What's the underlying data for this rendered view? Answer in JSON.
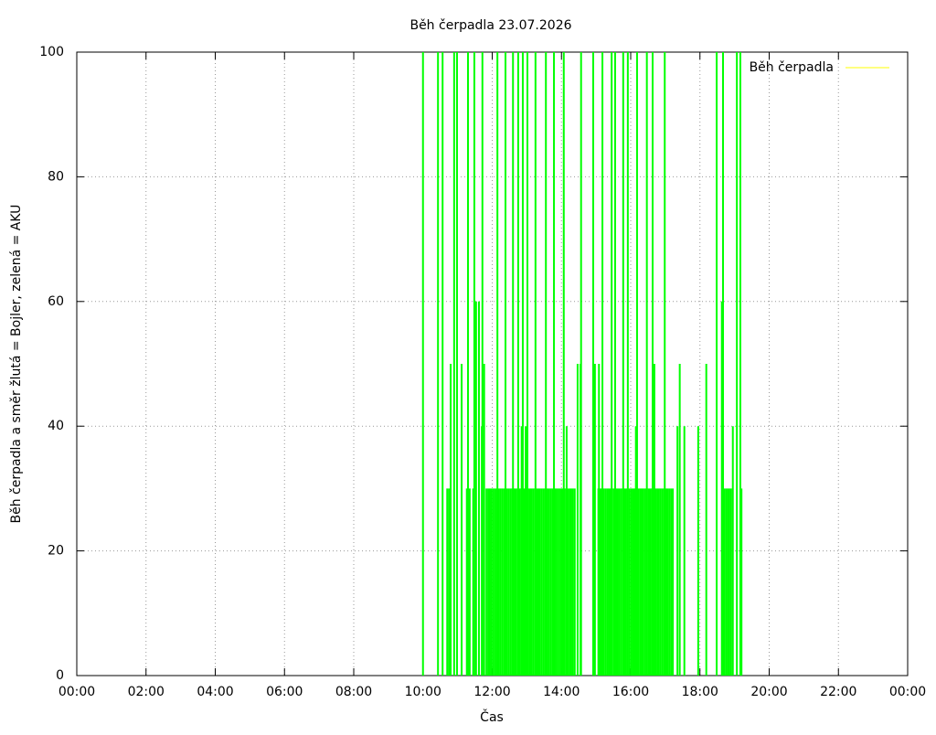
{
  "chart_data": {
    "type": "impulse",
    "title": "Běh čerpadla 23.07.2026",
    "x_label": "Čas",
    "y_label": "Běh čerpadla a směr žlutá = Bojler, zelená = AKU",
    "xlim": [
      0,
      1440
    ],
    "ylim": [
      0,
      100
    ],
    "xticks": [
      {
        "value": 0,
        "label": "00:00"
      },
      {
        "value": 120,
        "label": "02:00"
      },
      {
        "value": 240,
        "label": "04:00"
      },
      {
        "value": 360,
        "label": "06:00"
      },
      {
        "value": 480,
        "label": "08:00"
      },
      {
        "value": 600,
        "label": "10:00"
      },
      {
        "value": 720,
        "label": "12:00"
      },
      {
        "value": 840,
        "label": "14:00"
      },
      {
        "value": 960,
        "label": "16:00"
      },
      {
        "value": 1080,
        "label": "18:00"
      },
      {
        "value": 1200,
        "label": "20:00"
      },
      {
        "value": 1320,
        "label": "22:00"
      },
      {
        "value": 1440,
        "label": "00:00"
      }
    ],
    "yticks": [
      0,
      20,
      40,
      60,
      80,
      100
    ],
    "grid": true,
    "legend": "top-right",
    "series": [
      {
        "color": "#00ff00",
        "x": [
          600,
          626,
          634,
          654,
          659,
          678,
          689,
          703,
          729,
          743,
          756,
          765,
          773,
          781,
          795,
          813,
          827,
          844,
          874,
          895,
          911,
          927,
          933,
          947,
          955,
          971,
          988,
          998,
          1019,
          1109,
          1120,
          1144,
          1150,
          692,
          697,
          1118,
          648,
          667,
          706,
          868,
          873,
          898,
          905,
          1001,
          1045,
          1091,
          702,
          771,
          778,
          849,
          969,
          1041,
          1053,
          1077,
          1137,
          642,
          645,
          676,
          681,
          687,
          1152,
          710,
          713,
          716,
          719,
          722,
          725,
          728,
          731,
          734,
          737,
          740,
          743,
          746,
          749,
          752,
          755,
          758,
          761,
          764,
          767,
          770,
          773,
          776,
          779,
          782,
          785,
          788,
          791,
          794,
          797,
          800,
          803,
          806,
          809,
          812,
          815,
          818,
          821,
          824,
          827,
          830,
          833,
          836,
          839,
          842,
          845,
          848,
          851,
          854,
          857,
          860,
          863,
          904,
          907,
          910,
          913,
          916,
          919,
          922,
          925,
          928,
          931,
          934,
          937,
          940,
          943,
          946,
          949,
          952,
          955,
          958,
          961,
          964,
          967,
          970,
          973,
          976,
          979,
          982,
          985,
          988,
          991,
          994,
          997,
          1000,
          1003,
          1006,
          1009,
          1012,
          1015,
          1018,
          1021,
          1024,
          1027,
          1030,
          1033,
          1122,
          1125,
          1128,
          1131,
          1134
        ],
        "values": [
          100,
          100,
          100,
          100,
          100,
          100,
          100,
          100,
          100,
          100,
          100,
          100,
          100,
          100,
          100,
          100,
          100,
          100,
          100,
          100,
          100,
          100,
          100,
          100,
          100,
          100,
          100,
          100,
          100,
          100,
          100,
          100,
          100,
          60,
          60,
          60,
          50,
          50,
          50,
          50,
          50,
          50,
          50,
          50,
          50,
          50,
          40,
          40,
          40,
          40,
          40,
          40,
          40,
          40,
          40,
          30,
          30,
          30,
          30,
          30,
          30,
          30,
          30,
          30,
          30,
          30,
          30,
          30,
          30,
          30,
          30,
          30,
          30,
          30,
          30,
          30,
          30,
          30,
          30,
          30,
          30,
          30,
          30,
          30,
          30,
          30,
          30,
          30,
          30,
          30,
          30,
          30,
          30,
          30,
          30,
          30,
          30,
          30,
          30,
          30,
          30,
          30,
          30,
          30,
          30,
          30,
          30,
          30,
          30,
          30,
          30,
          30,
          30,
          30,
          30,
          30,
          30,
          30,
          30,
          30,
          30,
          30,
          30,
          30,
          30,
          30,
          30,
          30,
          30,
          30,
          30,
          30,
          30,
          30,
          30,
          30,
          30,
          30,
          30,
          30,
          30,
          30,
          30,
          30,
          30,
          30,
          30,
          30,
          30,
          30,
          30,
          30,
          30,
          30,
          30,
          30,
          30,
          30,
          30,
          30,
          30,
          30
        ]
      },
      {
        "name": "Běh čerpadla",
        "color": "#ffff00",
        "x": [],
        "values": []
      }
    ]
  }
}
